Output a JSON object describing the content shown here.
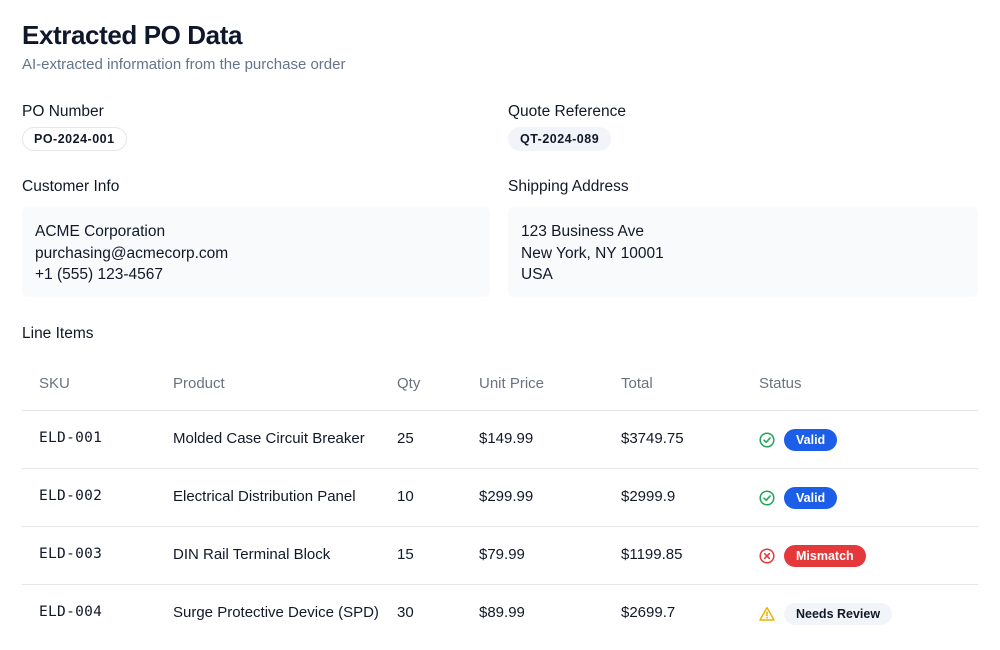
{
  "header": {
    "title": "Extracted PO Data",
    "subtitle": "AI-extracted information from the purchase order"
  },
  "po": {
    "label": "PO Number",
    "value": "PO-2024-001"
  },
  "quote": {
    "label": "Quote Reference",
    "value": "QT-2024-089"
  },
  "customer": {
    "label": "Customer Info",
    "name": "ACME Corporation",
    "email": "purchasing@acmecorp.com",
    "phone": "+1 (555) 123-4567"
  },
  "shipping": {
    "label": "Shipping Address",
    "street": "123 Business Ave",
    "city": "New York, NY 10001",
    "country": "USA"
  },
  "line_items": {
    "title": "Line Items",
    "columns": [
      "SKU",
      "Product",
      "Qty",
      "Unit Price",
      "Total",
      "Status"
    ],
    "rows": [
      {
        "sku": "ELD-001",
        "product": "Molded Case Circuit Breaker",
        "qty": "25",
        "unit_price": "$149.99",
        "total": "$3749.75",
        "status": "Valid",
        "status_icon": "check-circle-icon"
      },
      {
        "sku": "ELD-002",
        "product": "Electrical Distribution Panel",
        "qty": "10",
        "unit_price": "$299.99",
        "total": "$2999.9",
        "status": "Valid",
        "status_icon": "check-circle-icon"
      },
      {
        "sku": "ELD-003",
        "product": "DIN Rail Terminal Block",
        "qty": "15",
        "unit_price": "$79.99",
        "total": "$1199.85",
        "status": "Mismatch",
        "status_icon": "x-circle-icon"
      },
      {
        "sku": "ELD-004",
        "product": "Surge Protective Device (SPD)",
        "qty": "30",
        "unit_price": "$89.99",
        "total": "$2699.7",
        "status": "Needs Review",
        "status_icon": "warning-triangle-icon"
      }
    ]
  },
  "colors": {
    "valid": "#1d5ee8",
    "valid_icon": "#22a55b",
    "mismatch": "#e5383b",
    "review_icon": "#eab308",
    "review_bg": "#f1f5f9"
  }
}
